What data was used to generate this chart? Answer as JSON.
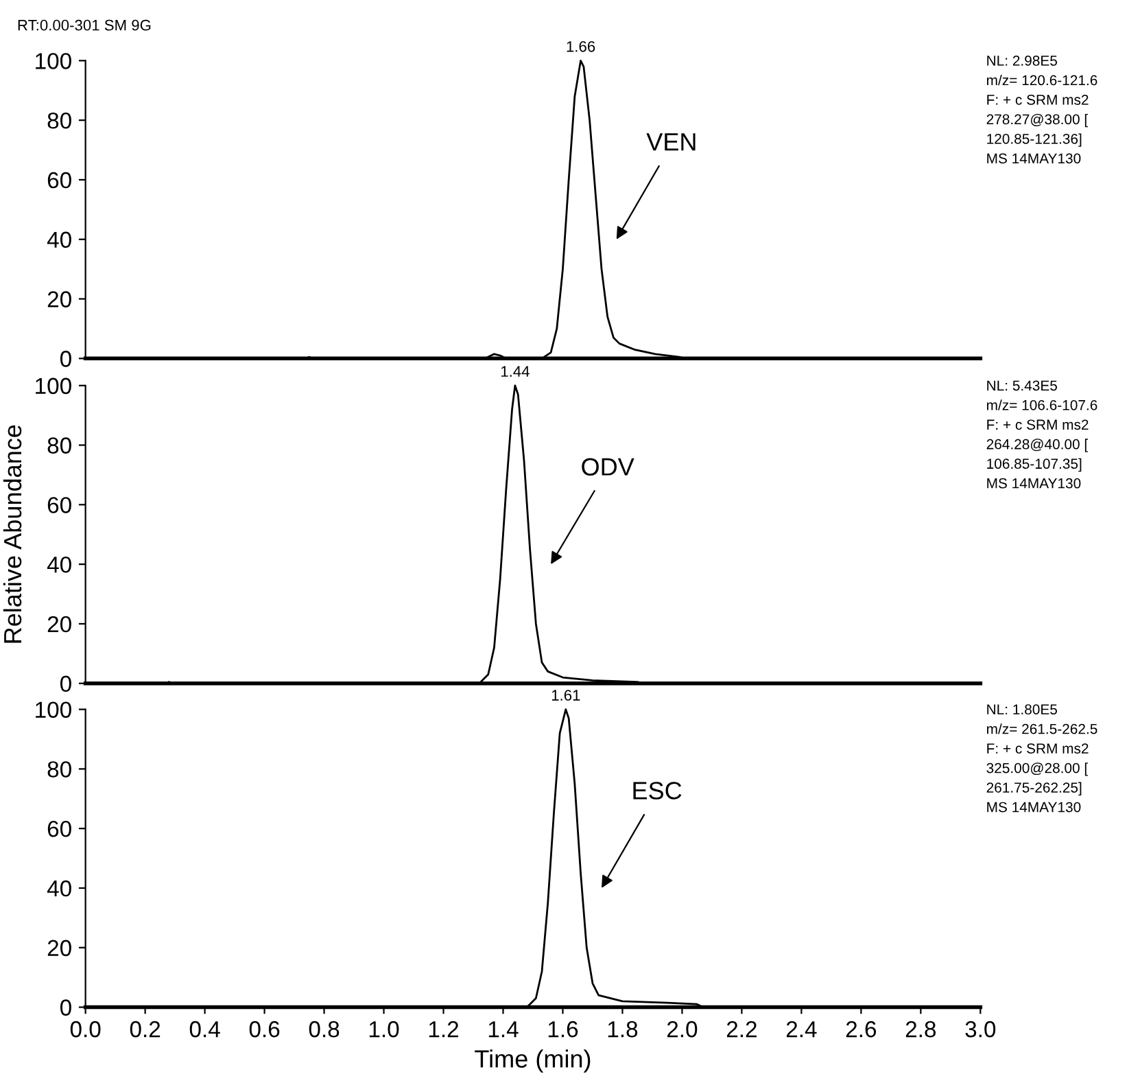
{
  "chart_data": [
    {
      "type": "line",
      "title": "RT:0.00-301 SM 9G",
      "xlim": [
        0,
        3
      ],
      "ylim": [
        0,
        100
      ],
      "yticks": [
        0,
        20,
        40,
        60,
        80,
        100
      ],
      "tick_labels": "y",
      "grid": false,
      "legend": false,
      "marker": "none",
      "line_style": "solid",
      "series": [
        {
          "color": "#000000",
          "x": [
            0,
            0.5,
            0.74,
            0.75,
            0.76,
            1.2,
            1.34,
            1.37,
            1.39,
            1.41,
            1.53,
            1.56,
            1.58,
            1.6,
            1.62,
            1.64,
            1.66,
            1.67,
            1.69,
            1.71,
            1.73,
            1.75,
            1.77,
            1.79,
            1.84,
            1.91,
            1.99,
            2.01,
            2.5,
            3.0
          ],
          "values": [
            0,
            0,
            0,
            0.5,
            0,
            0,
            0,
            1.5,
            1,
            0,
            0,
            2,
            10,
            30,
            60,
            88,
            100,
            98,
            80,
            55,
            30,
            14,
            7,
            5,
            3,
            1.5,
            0.5,
            0,
            0,
            0
          ]
        }
      ],
      "annotations": [
        {
          "text": "1.66",
          "x": 1.66,
          "y": 100
        },
        "VEN",
        "NL: 2.98E5",
        "m/z= 120.6-121.6",
        "F: + c SRM ms2",
        "278.27@38.00 [",
        "120.85-121.36]",
        "MS 14MAY130"
      ]
    },
    {
      "type": "line",
      "ylabel": "Relative Abundance",
      "xlim": [
        0,
        3
      ],
      "ylim": [
        0,
        100
      ],
      "yticks": [
        0,
        20,
        40,
        60,
        80,
        100
      ],
      "tick_labels": "y",
      "grid": false,
      "legend": false,
      "marker": "none",
      "line_style": "solid",
      "series": [
        {
          "color": "#000000",
          "x": [
            0,
            0.27,
            0.28,
            0.29,
            1.0,
            1.32,
            1.35,
            1.37,
            1.39,
            1.41,
            1.43,
            1.44,
            1.45,
            1.47,
            1.49,
            1.51,
            1.53,
            1.55,
            1.6,
            1.7,
            1.85,
            1.87,
            2.5,
            3.0
          ],
          "values": [
            0,
            0,
            0.5,
            0,
            0,
            0,
            3,
            12,
            35,
            65,
            92,
            100,
            97,
            75,
            45,
            20,
            7,
            4,
            2,
            1,
            0.5,
            0,
            0,
            0
          ]
        }
      ],
      "annotations": [
        {
          "text": "1.44",
          "x": 1.44,
          "y": 100
        },
        "ODV",
        "NL: 5.43E5",
        "m/z= 106.6-107.6",
        "F: + c SRM ms2",
        "264.28@40.00 [",
        "106.85-107.35]",
        "MS 14MAY130"
      ]
    },
    {
      "type": "line",
      "xlabel": "Time (min)",
      "xlim": [
        0,
        3
      ],
      "ylim": [
        0,
        100
      ],
      "yticks": [
        0,
        20,
        40,
        60,
        80,
        100
      ],
      "grid": false,
      "legend": false,
      "marker": "none",
      "line_style": "solid",
      "xticks": [
        {
          "value": 0,
          "label": "0.0"
        },
        {
          "value": 0.2,
          "label": "0.2"
        },
        {
          "value": 0.4,
          "label": "0.4"
        },
        {
          "value": 0.6,
          "label": "0.6"
        },
        {
          "value": 0.8,
          "label": "0.8"
        },
        {
          "value": 1,
          "label": "1.0"
        },
        {
          "value": 1.2,
          "label": "1.2"
        },
        {
          "value": 1.4,
          "label": "1.4"
        },
        {
          "value": 1.6,
          "label": "1.6"
        },
        {
          "value": 1.8,
          "label": "1.8"
        },
        {
          "value": 2,
          "label": "2.0"
        },
        {
          "value": 2.2,
          "label": "2.2"
        },
        {
          "value": 2.4,
          "label": "2.4"
        },
        {
          "value": 2.6,
          "label": "2.6"
        },
        {
          "value": 2.8,
          "label": "2.8"
        },
        {
          "value": 3,
          "label": "3.0"
        }
      ],
      "series": [
        {
          "color": "#000000",
          "x": [
            0,
            1.0,
            1.4,
            1.48,
            1.51,
            1.53,
            1.55,
            1.57,
            1.59,
            1.61,
            1.62,
            1.64,
            1.66,
            1.68,
            1.7,
            1.72,
            1.8,
            1.95,
            2.05,
            2.07,
            2.5,
            3.0
          ],
          "values": [
            0,
            0,
            0,
            0,
            3,
            12,
            35,
            65,
            92,
            100,
            97,
            75,
            45,
            20,
            8,
            4,
            2,
            1.5,
            1,
            0,
            0,
            0
          ]
        }
      ],
      "annotations": [
        {
          "text": "1.61",
          "x": 1.61,
          "y": 100
        },
        "ESC",
        "NL: 1.80E5",
        "m/z= 261.5-262.5",
        "F: + c SRM ms2",
        "325.00@28.00 [",
        "261.75-262.25]",
        "MS 14MAY130"
      ]
    }
  ]
}
